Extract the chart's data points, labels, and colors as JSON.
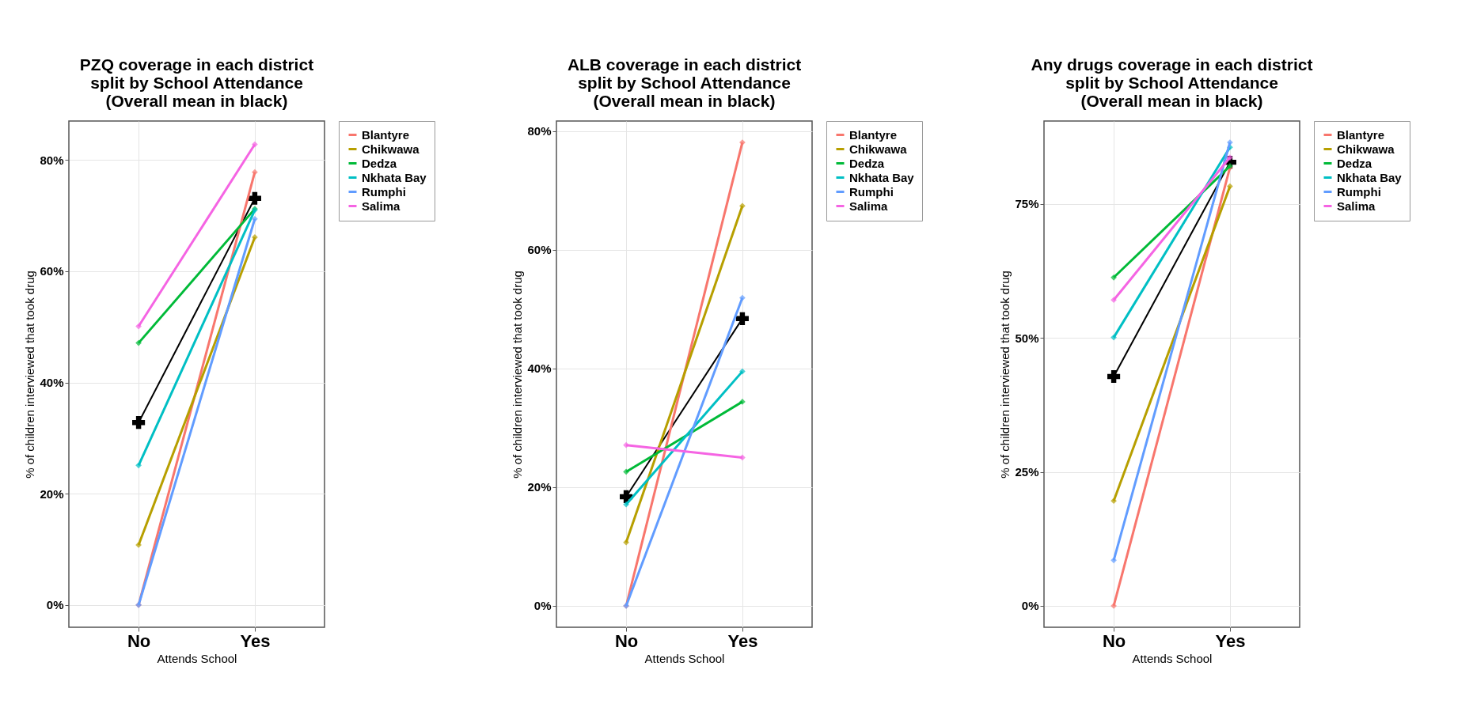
{
  "chart_data": [
    {
      "type": "line",
      "title": "PZQ coverage in each district\nsplit by School Attendance\n(Overall mean in black)",
      "xlabel": "Attends School",
      "ylabel": "% of children interviewed that took drug",
      "categories": [
        "No",
        "Yes"
      ],
      "ylim": [
        -4,
        87
      ],
      "yticks": [
        {
          "value": 0,
          "label": "0%"
        },
        {
          "value": 20,
          "label": "20%"
        },
        {
          "value": 40,
          "label": "40%"
        },
        {
          "value": 60,
          "label": "60%"
        },
        {
          "value": 80,
          "label": "80%"
        }
      ],
      "grid": true,
      "legend": "right",
      "series": [
        {
          "name": "Blantyre",
          "color": "#f8766d",
          "marker": "diamond",
          "values": [
            0,
            77.8
          ]
        },
        {
          "name": "Chikwawa",
          "color": "#b79f00",
          "marker": "diamond",
          "values": [
            10.8,
            66.1
          ]
        },
        {
          "name": "Dedza",
          "color": "#00ba38",
          "marker": "diamond",
          "values": [
            47.1,
            71.2
          ]
        },
        {
          "name": "Nkhata Bay",
          "color": "#00bfc4",
          "marker": "diamond",
          "values": [
            25.1,
            71
          ]
        },
        {
          "name": "Rumphi",
          "color": "#619cff",
          "marker": "diamond",
          "values": [
            0,
            69.4
          ]
        },
        {
          "name": "Salima",
          "color": "#f564e3",
          "marker": "diamond",
          "values": [
            50.1,
            82.8
          ]
        },
        {
          "color": "#000000",
          "marker": "cross",
          "values": [
            32.8,
            73.1
          ]
        }
      ]
    },
    {
      "type": "line",
      "title": "ALB coverage in each district\nsplit by School Attendance\n(Overall mean in black)",
      "xlabel": "Attends School",
      "ylabel": "% of children interviewed that took drug",
      "categories": [
        "No",
        "Yes"
      ],
      "ylim": [
        -3.6,
        81.7
      ],
      "yticks": [
        {
          "value": 0,
          "label": "0%"
        },
        {
          "value": 20,
          "label": "20%"
        },
        {
          "value": 40,
          "label": "40%"
        },
        {
          "value": 60,
          "label": "60%"
        },
        {
          "value": 80,
          "label": "80%"
        }
      ],
      "grid": true,
      "legend": "right",
      "series": [
        {
          "name": "Blantyre",
          "color": "#f8766d",
          "marker": "diamond",
          "values": [
            0,
            78.1
          ]
        },
        {
          "name": "Chikwawa",
          "color": "#b79f00",
          "marker": "diamond",
          "values": [
            10.7,
            67.4
          ]
        },
        {
          "name": "Dedza",
          "color": "#00ba38",
          "marker": "diamond",
          "values": [
            22.6,
            34.4
          ]
        },
        {
          "name": "Nkhata Bay",
          "color": "#00bfc4",
          "marker": "diamond",
          "values": [
            17.1,
            39.5
          ]
        },
        {
          "name": "Rumphi",
          "color": "#619cff",
          "marker": "diamond",
          "values": [
            0,
            51.9
          ]
        },
        {
          "name": "Salima",
          "color": "#f564e3",
          "marker": "diamond",
          "values": [
            27.1,
            25.0
          ]
        },
        {
          "color": "#000000",
          "marker": "cross",
          "values": [
            18.4,
            48.4
          ]
        }
      ]
    },
    {
      "type": "line",
      "title": "Any drugs coverage in each district\nsplit by School Attendance\n(Overall mean in black)",
      "xlabel": "Attends School",
      "ylabel": "% of children interviewed that took drug",
      "categories": [
        "No",
        "Yes"
      ],
      "ylim": [
        -4,
        90.5
      ],
      "yticks": [
        {
          "value": 0,
          "label": "0%"
        },
        {
          "value": 25,
          "label": "25%"
        },
        {
          "value": 50,
          "label": "50%"
        },
        {
          "value": 75,
          "label": "75%"
        }
      ],
      "grid": true,
      "legend": "right",
      "series": [
        {
          "name": "Blantyre",
          "color": "#f8766d",
          "marker": "diamond",
          "values": [
            0,
            81.8
          ]
        },
        {
          "name": "Chikwawa",
          "color": "#b79f00",
          "marker": "diamond",
          "values": [
            19.6,
            78.3
          ]
        },
        {
          "name": "Dedza",
          "color": "#00ba38",
          "marker": "diamond",
          "values": [
            61.3,
            82.1
          ]
        },
        {
          "name": "Nkhata Bay",
          "color": "#00bfc4",
          "marker": "diamond",
          "values": [
            50.1,
            85.6
          ]
        },
        {
          "name": "Rumphi",
          "color": "#619cff",
          "marker": "diamond",
          "values": [
            8.5,
            86.5
          ]
        },
        {
          "name": "Salima",
          "color": "#f564e3",
          "marker": "diamond",
          "values": [
            57.1,
            83.7
          ]
        },
        {
          "color": "#000000",
          "marker": "cross",
          "values": [
            42.8,
            82.8
          ]
        }
      ]
    }
  ]
}
